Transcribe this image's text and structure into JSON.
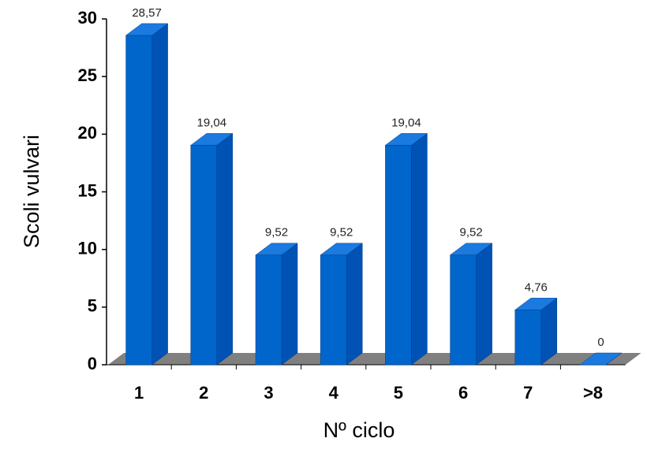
{
  "chart_data": {
    "type": "bar3d",
    "x_label": "Nº ciclo",
    "y_label": "Scoli vulvari",
    "categories": [
      "1",
      "2",
      "3",
      "4",
      "5",
      "6",
      "7",
      ">8"
    ],
    "values": [
      28.57,
      19.04,
      9.52,
      9.52,
      19.04,
      9.52,
      4.76,
      0
    ],
    "value_labels": [
      "28,57",
      "19,04",
      "9,52",
      "9,52",
      "19,04",
      "9,52",
      "4,76",
      "0"
    ],
    "color": "#0066cc",
    "ylim": [
      0,
      30
    ],
    "yticks": [
      0,
      5,
      10,
      15,
      20,
      25,
      30
    ]
  }
}
